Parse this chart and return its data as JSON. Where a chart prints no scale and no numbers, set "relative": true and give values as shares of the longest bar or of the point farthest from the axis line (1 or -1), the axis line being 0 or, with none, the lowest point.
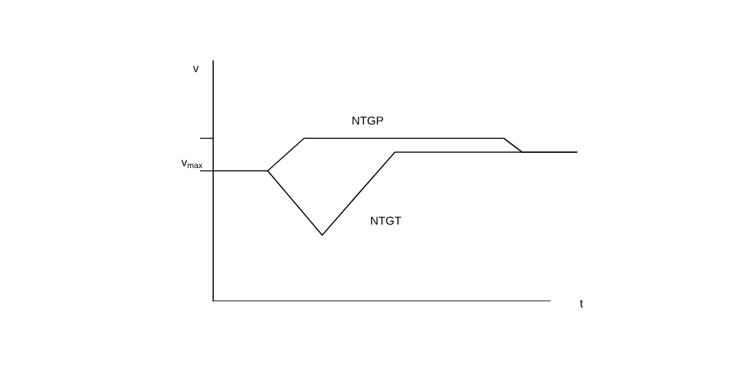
{
  "chart_data": {
    "type": "line",
    "relative": true,
    "categories": [
      null,
      null,
      null,
      null,
      null,
      null,
      null,
      null,
      null,
      null,
      null,
      null,
      null,
      null,
      null,
      null,
      null,
      null,
      null,
      null,
      null
    ],
    "series": [
      {
        "name": "NTGP",
        "color": "#000000",
        "values": [
          0.8,
          0.8,
          0.8,
          0.8,
          0.9,
          1,
          1,
          1,
          1,
          1,
          1,
          1,
          1,
          1,
          1,
          1,
          1,
          0.915,
          0.915,
          0.915,
          0.915
        ]
      },
      {
        "name": "NTGT",
        "color": "#000000",
        "values": [
          null,
          null,
          null,
          0.8,
          0.668,
          0.536,
          0.404,
          0.532,
          0.66,
          0.787,
          0.915,
          0.915,
          0.915,
          0.915,
          0.915,
          0.915,
          0.915,
          0.915,
          0.915,
          0.915,
          0.915
        ]
      }
    ],
    "annotations": [
      "v",
      "v$_{max}$",
      "t"
    ],
    "marker": "none",
    "line_style": "solid",
    "legend": false
  }
}
